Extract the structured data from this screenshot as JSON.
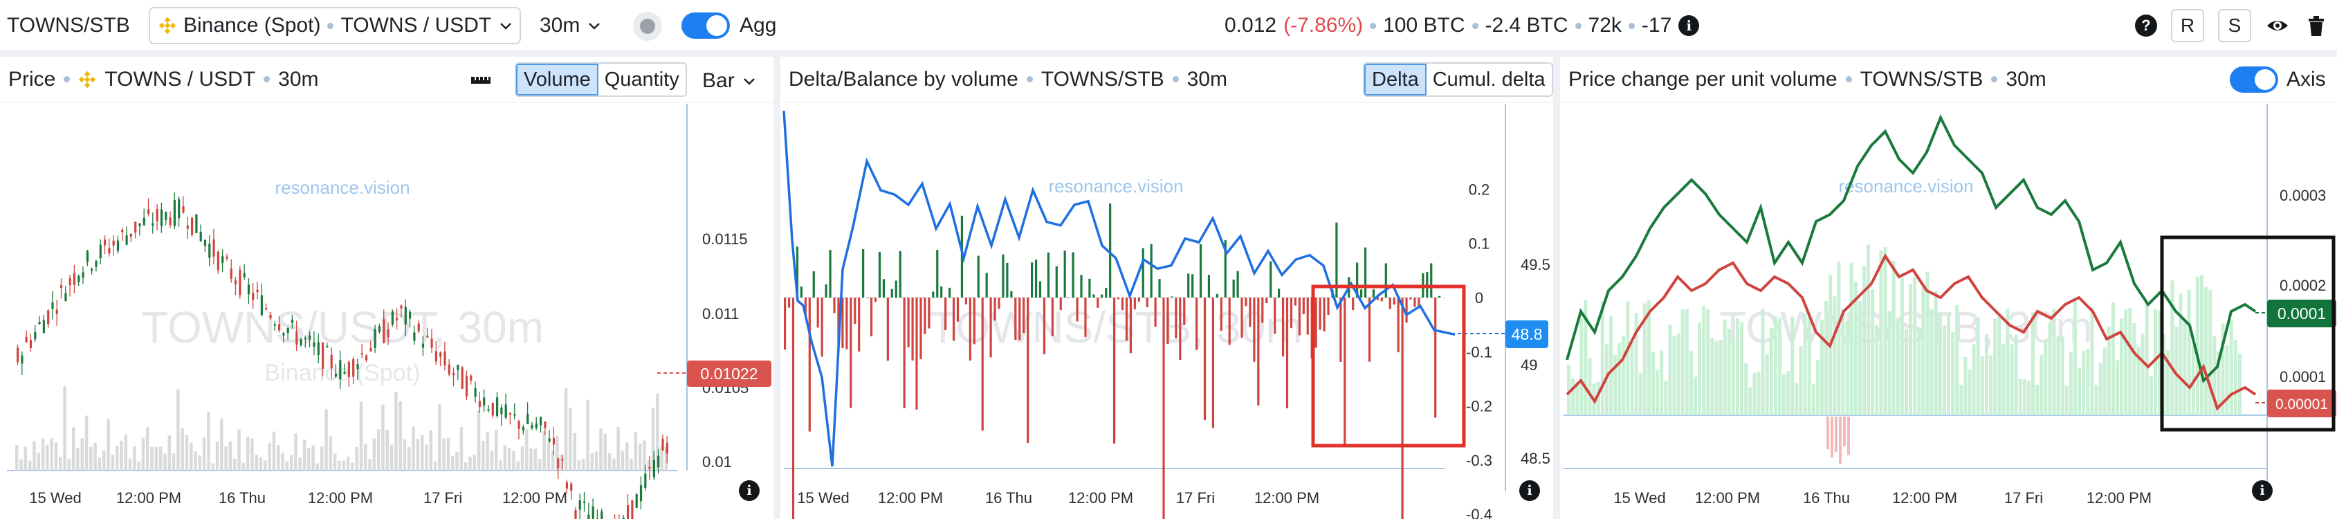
{
  "topbar": {
    "pair": "TOWNS/STB",
    "exchange": "Binance (Spot)",
    "market": "TOWNS / USDT",
    "interval": "30m",
    "agg_label": "Agg",
    "price": "0.012",
    "change": "(-7.86%)",
    "volume": "100 BTC",
    "delta": "-2.4 BTC",
    "trades": "72k",
    "count": "-17",
    "r_label": "R",
    "s_label": "S"
  },
  "panels": {
    "price": {
      "title": "Price",
      "market": "TOWNS / USDT",
      "interval": "30m",
      "seg_volume": "Volume",
      "seg_quantity": "Quantity",
      "type": "Bar",
      "watermark_site": "resonance.vision",
      "watermark_main": "TOWNS/USDT, 30m",
      "watermark_sub": "Binance (Spot)",
      "last_price": "0.01022",
      "y_ticks": [
        "0.0115",
        "0.011",
        "0.0105",
        "0.01"
      ],
      "x_ticks": [
        "15 Wed",
        "12:00 PM",
        "16 Thu",
        "12:00 PM",
        "17 Fri",
        "12:00 PM"
      ]
    },
    "delta": {
      "title": "Delta/Balance by volume",
      "pair": "TOWNS/STB",
      "interval": "30m",
      "seg_delta": "Delta",
      "seg_cumul": "Cumul. delta",
      "watermark_site": "resonance.vision",
      "watermark_main": "TOWNS/STB, 30m",
      "y_left_ticks": [
        "0.2",
        "0.1",
        "0",
        "-0.1",
        "-0.2",
        "-0.3",
        "-0.4"
      ],
      "y_right_ticks": [
        "49.5",
        "49",
        "48.5"
      ],
      "current_value": "48.8",
      "x_ticks": [
        "15 Wed",
        "12:00 PM",
        "16 Thu",
        "12:00 PM",
        "17 Fri",
        "12:00 PM"
      ]
    },
    "pcpuv": {
      "title": "Price change per unit volume",
      "pair": "TOWNS/STB",
      "interval": "30m",
      "axis_label": "Axis",
      "watermark_site": "resonance.vision",
      "watermark_main": "TOWNS/STB, 30m",
      "y_ticks": [
        "0.0003",
        "0.0002",
        "0.0001"
      ],
      "green_value": "0.0001",
      "red_value": "0.00001",
      "x_ticks": [
        "15 Wed",
        "12:00 PM",
        "16 Thu",
        "12:00 PM",
        "17 Fri",
        "12:00 PM"
      ]
    }
  },
  "colors": {
    "accent": "#1e7ff0",
    "up": "#1a7a3c",
    "down": "#d0443f",
    "price_tag": "#d9534f",
    "delta_line": "#1e6fe0",
    "highlight_red": "#e0322b",
    "highlight_black": "#111111"
  }
}
